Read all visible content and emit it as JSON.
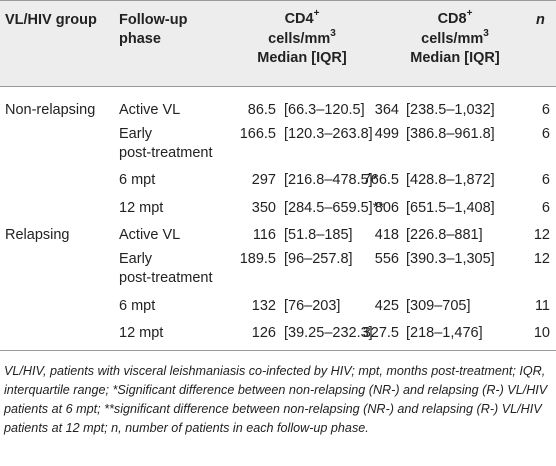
{
  "headers": {
    "group": "VL/HIV group",
    "phase_line1": "Follow-up",
    "phase_line2": "phase",
    "cd4_line1": "CD4",
    "cd4_sup": "+",
    "cd4_line2_a": "cells/mm",
    "cd4_line2_sup": "3",
    "cd4_line3": "Median [IQR]",
    "cd8_line1": "CD8",
    "cd8_sup": "+",
    "cd8_line2_a": "cells/mm",
    "cd8_line2_sup": "3",
    "cd8_line3": "Median [IQR]",
    "n": "n"
  },
  "rows": [
    {
      "group": "Non-relapsing",
      "phase1": "Active VL",
      "phase2": "",
      "cd4_median": "86.5",
      "cd4_iqr": "[66.3–120.5]",
      "cd8_median": "364",
      "cd8_iqr": "[238.5–1,032]",
      "n": "6"
    },
    {
      "group": "",
      "phase1": "Early",
      "phase2": "post-treatment",
      "cd4_median": "166.5",
      "cd4_iqr": "[120.3–263.8]",
      "cd8_median": "499",
      "cd8_iqr": "[386.8–961.8]",
      "n": "6"
    },
    {
      "group": "",
      "phase1": "6 mpt",
      "phase2": "",
      "cd4_median": "297",
      "cd4_iqr": "[216.8–478.5]*",
      "cd8_median": "766.5",
      "cd8_iqr": "[428.8–1,872]",
      "n": "6"
    },
    {
      "group": "",
      "phase1": "12 mpt",
      "phase2": "",
      "cd4_median": "350",
      "cd4_iqr": "[284.5–659.5]**",
      "cd8_median": "806",
      "cd8_iqr": "[651.5–1,408]",
      "n": "6"
    },
    {
      "group": "Relapsing",
      "phase1": "Active VL",
      "phase2": "",
      "cd4_median": "116",
      "cd4_iqr": "[51.8–185]",
      "cd8_median": "418",
      "cd8_iqr": "[226.8–881]",
      "n": "12"
    },
    {
      "group": "",
      "phase1": "Early",
      "phase2": "post-treatment",
      "cd4_median": "189.5",
      "cd4_iqr": "[96–257.8]",
      "cd8_median": "556",
      "cd8_iqr": "[390.3–1,305]",
      "n": "12"
    },
    {
      "group": "",
      "phase1": "6 mpt",
      "phase2": "",
      "cd4_median": "132",
      "cd4_iqr": "[76–203]",
      "cd8_median": "425",
      "cd8_iqr": "[309–705]",
      "n": "11"
    },
    {
      "group": "",
      "phase1": "12 mpt",
      "phase2": "",
      "cd4_median": "126",
      "cd4_iqr": "[39.25–232.3]",
      "cd8_median": "327.5",
      "cd8_iqr": "[218–1,476]",
      "n": "10"
    }
  ],
  "footnote": "VL/HIV, patients with visceral leishmaniasis co-infected by HIV; mpt, months post-treatment; IQR, interquartile range; *Significant difference between non-relapsing (NR-) and relapsing (R-) VL/HIV patients at 6 mpt; **significant difference between non-relapsing (NR-) and relapsing (R-) VL/HIV patients at 12 mpt; n, number of patients in each follow-up phase."
}
